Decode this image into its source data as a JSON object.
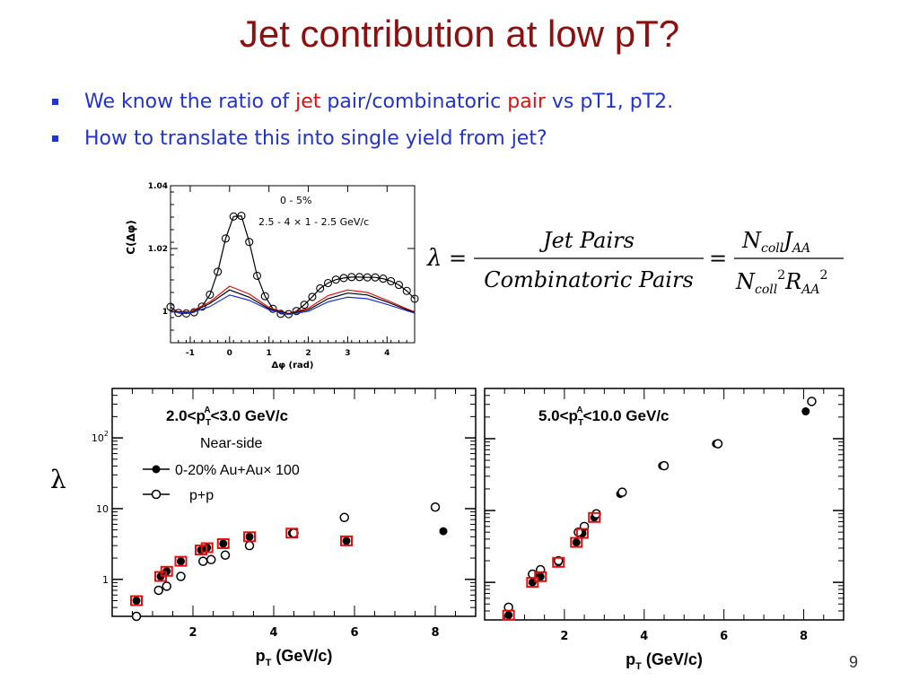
{
  "slide": {
    "title": "Jet contribution at low pT?",
    "bullets": [
      {
        "parts": [
          {
            "text": "We know the ratio of ",
            "color": "#2233cc"
          },
          {
            "text": "jet",
            "color": "#e01010"
          },
          {
            "text": " pair/combinatoric ",
            "color": "#2233cc"
          },
          {
            "text": "pair",
            "color": "#e01010"
          },
          {
            "text": " vs pT1, pT2.",
            "color": "#2233cc"
          }
        ]
      },
      {
        "parts": [
          {
            "text": "How to translate this into single yield from jet?",
            "color": "#2233cc"
          }
        ]
      }
    ],
    "lambda_symbol": "λ",
    "page_number": "9"
  },
  "formula": {
    "lhs": "λ",
    "equals": "=",
    "num1": "Jet Pairs",
    "den1": "Combinatoric Pairs",
    "num2_N": "N",
    "num2_sub": "coll",
    "num2_J": "J",
    "num2_Jsub": "AA",
    "den2_N": "N",
    "den2_sub": "coll",
    "den2_exp": "2",
    "den2_R": "R",
    "den2_Rsub": "AA",
    "den2_Rexp": "2"
  },
  "chart_data": [
    {
      "type": "line",
      "ylabel": "C(Δφ)",
      "xlabel": "Δφ (rad)",
      "xlim": [
        -1.5,
        4.7
      ],
      "ylim": [
        0.99,
        1.04
      ],
      "xticks": [
        "-1",
        "0",
        "1",
        "2",
        "3",
        "4"
      ],
      "yticks": [
        "1",
        "1.02",
        "1.04"
      ],
      "annotations": [
        "0 - 5%",
        "2.5 - 4 × 1 - 2.5 GeV/c"
      ],
      "series": [
        {
          "color": "#000000",
          "marker": "open-circle",
          "x": [
            -1.5,
            -1.3,
            -1.1,
            -0.9,
            -0.7,
            -0.5,
            -0.3,
            -0.1,
            0.1,
            0.3,
            0.5,
            0.7,
            0.9,
            1.1,
            1.3,
            1.5,
            1.7,
            1.9,
            2.1,
            2.3,
            2.5,
            2.7,
            2.9,
            3.1,
            3.3,
            3.5,
            3.7,
            3.9,
            4.1,
            4.3,
            4.5,
            4.7
          ],
          "y": [
            1.0014,
            0.9995,
            0.9993,
            0.9997,
            1.0015,
            1.0053,
            1.0126,
            1.0232,
            1.0302,
            1.0304,
            1.0221,
            1.0113,
            1.0048,
            1.0008,
            0.9992,
            0.9991,
            1.0001,
            1.0021,
            1.0046,
            1.0073,
            1.009,
            1.0101,
            1.0106,
            1.0109,
            1.0109,
            1.0108,
            1.0108,
            1.0104,
            1.0096,
            1.0084,
            1.0065,
            1.004
          ]
        },
        {
          "color": "#e01010",
          "x": [
            -1.5,
            -1.0,
            -0.5,
            0.0,
            0.5,
            1.0,
            1.5,
            2.0,
            2.5,
            3.0,
            3.5,
            4.0,
            4.5,
            4.7
          ],
          "y": [
            1.0,
            0.9998,
            1.003,
            1.008,
            1.0055,
            1.0012,
            0.9993,
            1.001,
            1.005,
            1.0068,
            1.006,
            1.0035,
            1.0008,
            0.9998
          ]
        },
        {
          "color": "#000000",
          "x": [
            -1.5,
            -1.0,
            -0.5,
            0.0,
            0.5,
            1.0,
            1.5,
            2.0,
            2.5,
            3.0,
            3.5,
            4.0,
            4.5,
            4.7
          ],
          "y": [
            1.0,
            0.9995,
            1.0025,
            1.0068,
            1.0045,
            1.0008,
            0.9992,
            1.0005,
            1.004,
            1.0058,
            1.0052,
            1.003,
            1.0005,
            0.9996
          ]
        },
        {
          "color": "#2233cc",
          "x": [
            -1.5,
            -1.0,
            -0.5,
            0.0,
            0.5,
            1.0,
            1.5,
            2.0,
            2.5,
            3.0,
            3.5,
            4.0,
            4.5,
            4.7
          ],
          "y": [
            0.9998,
            0.9994,
            1.0015,
            1.0052,
            1.0035,
            1.0005,
            0.999,
            1.0,
            1.003,
            1.0045,
            1.004,
            1.0022,
            1.0002,
            0.9994
          ]
        }
      ]
    },
    {
      "type": "scatter",
      "title": "2.0<p_T^A<3.0 GeV/c",
      "subtitle": "Near-side",
      "xlabel": "p_T (GeV/c)",
      "log_y": true,
      "xlim": [
        0,
        9
      ],
      "ylim": [
        0.3,
        500
      ],
      "xticks": [
        "2",
        "4",
        "6",
        "8"
      ],
      "yticks": [
        "1",
        "10",
        "10^2"
      ],
      "legend_items": [
        "0-20% Au+Au× 100",
        "p+p"
      ],
      "series": [
        {
          "name": "0-20% Au+Au× 100",
          "marker": "filled-circle",
          "x": [
            0.6,
            1.2,
            1.35,
            1.7,
            2.2,
            2.35,
            2.75,
            3.4,
            4.45,
            5.8,
            8.2
          ],
          "y": [
            0.5,
            1.1,
            1.3,
            1.8,
            2.6,
            2.8,
            3.2,
            4.0,
            4.5,
            3.5,
            4.8
          ]
        },
        {
          "name": "p+p",
          "marker": "open-circle",
          "x": [
            0.6,
            1.15,
            1.35,
            1.7,
            2.25,
            2.45,
            2.8,
            3.4,
            4.5,
            5.75,
            8.0
          ],
          "y": [
            0.3,
            0.7,
            0.8,
            1.1,
            1.8,
            1.9,
            2.2,
            3.0,
            4.5,
            7.5,
            10.5
          ]
        },
        {
          "name": "sys",
          "marker": "red-box",
          "x": [
            0.6,
            1.2,
            1.35,
            1.7,
            2.2,
            2.35,
            2.75,
            3.4,
            4.45,
            5.8
          ],
          "y": [
            0.5,
            1.1,
            1.3,
            1.8,
            2.6,
            2.8,
            3.2,
            4.0,
            4.5,
            3.5
          ]
        }
      ]
    },
    {
      "type": "scatter",
      "title": "5.0<p_T^A<10.0 GeV/c",
      "xlabel": "p_T (GeV/c)",
      "log_y": true,
      "xlim": [
        0,
        9
      ],
      "ylim": [
        0.3,
        500
      ],
      "xticks": [
        "2",
        "4",
        "6",
        "8"
      ],
      "series": [
        {
          "name": "0-20% Au+Au× 100",
          "marker": "filled-circle",
          "x": [
            0.6,
            1.2,
            1.4,
            1.85,
            2.3,
            2.45,
            2.75,
            3.4,
            4.45,
            5.8,
            8.05
          ],
          "y": [
            0.35,
            1.0,
            1.2,
            1.9,
            3.6,
            4.8,
            8.0,
            17.0,
            42.0,
            85.0,
            240.0
          ]
        },
        {
          "name": "p+p",
          "marker": "open-circle",
          "x": [
            0.6,
            1.2,
            1.4,
            1.85,
            2.35,
            2.5,
            2.8,
            3.45,
            4.5,
            5.85,
            8.2
          ],
          "y": [
            0.45,
            1.3,
            1.5,
            2.0,
            5.0,
            6.0,
            9.0,
            18.0,
            42.0,
            85.0,
            330.0
          ]
        },
        {
          "name": "sys",
          "marker": "red-box",
          "x": [
            0.6,
            1.2,
            1.4,
            1.85,
            2.3,
            2.45,
            2.75
          ],
          "y": [
            0.35,
            1.0,
            1.2,
            1.9,
            3.6,
            4.8,
            8.0
          ]
        }
      ]
    }
  ]
}
